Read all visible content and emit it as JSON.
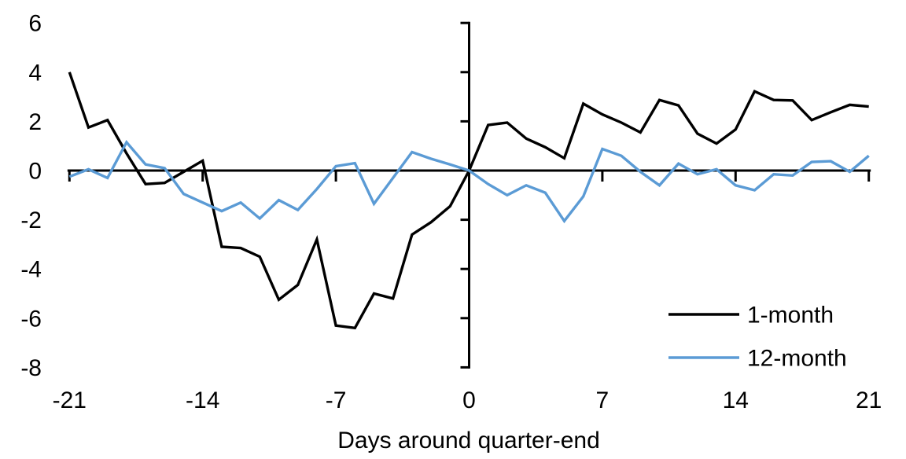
{
  "chart": {
    "xlabel": "Days around quarter-end",
    "accent_blue": "#5B9BD5",
    "accent_black": "#000000",
    "legend": [
      {
        "label": "1-month",
        "color": "#000000"
      },
      {
        "label": "12-month",
        "color": "#5B9BD5"
      }
    ]
  },
  "chart_data": {
    "type": "line",
    "title": "",
    "xlabel": "Days around quarter-end",
    "ylabel": "",
    "grid": false,
    "legend_position": "inside-lower-right",
    "xlim": [
      -21,
      21
    ],
    "ylim": [
      -8,
      6
    ],
    "x_ticks": [
      -21,
      -14,
      -7,
      0,
      7,
      14,
      21
    ],
    "x_tick_labels": [
      "-21",
      "-14",
      "-7",
      "0",
      "7",
      "14",
      "21"
    ],
    "y_ticks": [
      6,
      4,
      2,
      0,
      -2,
      -4,
      -6,
      -8
    ],
    "y_tick_labels": [
      "6",
      "4",
      "2",
      "0",
      "-2",
      "-4",
      "-6",
      "-8"
    ],
    "x": [
      -21,
      -20,
      -19,
      -18,
      -17,
      -16,
      -15,
      -14,
      -13,
      -12,
      -11,
      -10,
      -9,
      -8,
      -7,
      -6,
      -5,
      -4,
      -3,
      -2,
      -1,
      0,
      1,
      2,
      3,
      4,
      5,
      6,
      7,
      8,
      9,
      10,
      11,
      12,
      13,
      14,
      15,
      16,
      17,
      18,
      19,
      20,
      21
    ],
    "series": [
      {
        "name": "1-month",
        "color": "#000000",
        "values": [
          4.0,
          1.75,
          2.05,
          0.7,
          -0.55,
          -0.5,
          -0.05,
          0.4,
          -3.1,
          -3.15,
          -3.5,
          -5.25,
          -4.65,
          -2.8,
          -6.3,
          -6.4,
          -5.0,
          -5.2,
          -2.6,
          -2.1,
          -1.45,
          0.0,
          1.85,
          1.95,
          1.3,
          0.95,
          0.5,
          2.72,
          2.28,
          1.95,
          1.55,
          2.87,
          2.65,
          1.5,
          1.1,
          1.67,
          3.22,
          2.87,
          2.85,
          2.05,
          2.37,
          2.67,
          2.6
        ]
      },
      {
        "name": "12-month",
        "color": "#5B9BD5",
        "values": [
          -0.25,
          0.05,
          -0.3,
          1.15,
          0.25,
          0.1,
          -0.95,
          -1.3,
          -1.65,
          -1.3,
          -1.95,
          -1.2,
          -1.6,
          -0.75,
          0.18,
          0.3,
          -1.35,
          -0.3,
          0.75,
          0.48,
          0.25,
          0.0,
          -0.55,
          -1.0,
          -0.6,
          -0.9,
          -2.05,
          -1.05,
          0.88,
          0.6,
          -0.05,
          -0.6,
          0.28,
          -0.15,
          0.05,
          -0.6,
          -0.8,
          -0.15,
          -0.2,
          0.35,
          0.38,
          -0.05,
          0.6
        ]
      }
    ]
  }
}
